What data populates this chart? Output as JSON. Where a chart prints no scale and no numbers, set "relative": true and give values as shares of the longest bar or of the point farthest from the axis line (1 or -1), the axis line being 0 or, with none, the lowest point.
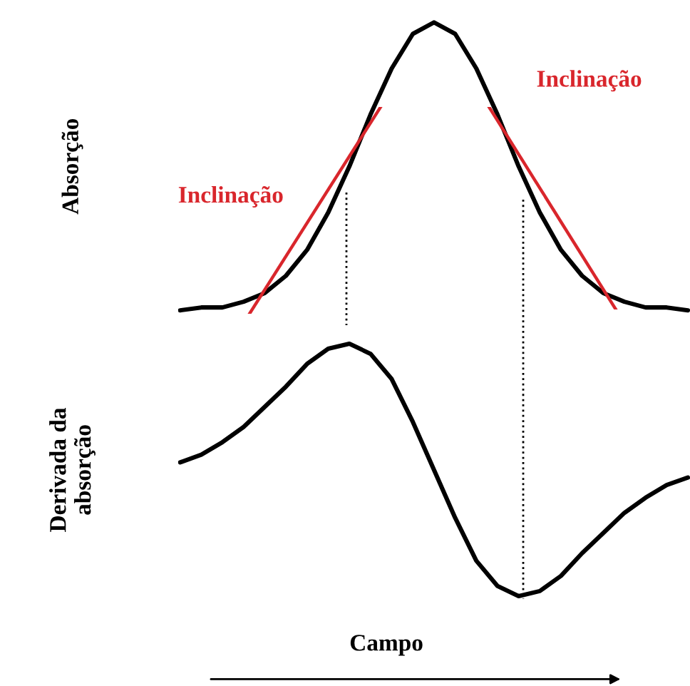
{
  "chart_data": [
    {
      "type": "line",
      "relative": true,
      "ylabel": "Absorção",
      "categories": [
        null,
        null,
        null,
        null,
        null,
        null,
        null,
        null,
        null,
        null,
        null,
        null,
        null,
        null,
        null,
        null,
        null,
        null,
        null,
        null,
        null,
        null,
        null,
        null,
        null
      ],
      "series": [
        {
          "color": "#000000",
          "values": [
            0.0,
            0.01,
            0.01,
            0.03,
            0.06,
            0.12,
            0.21,
            0.34,
            0.5,
            0.68,
            0.84,
            0.96,
            1.0,
            0.96,
            0.84,
            0.68,
            0.5,
            0.34,
            0.21,
            0.12,
            0.06,
            0.03,
            0.01,
            0.01,
            0.0
          ]
        }
      ],
      "annotations": [
        "Inclinação",
        "Inclinação"
      ]
    },
    {
      "type": "line",
      "relative": true,
      "ylabel": "Derivada da\nabsorção",
      "xlabel": "Campo",
      "categories": [
        null,
        null,
        null,
        null,
        null,
        null,
        null,
        null,
        null,
        null,
        null,
        null,
        null,
        null,
        null,
        null,
        null,
        null,
        null,
        null,
        null,
        null,
        null,
        null,
        null
      ],
      "series": [
        {
          "color": "#000000",
          "values": [
            0.53,
            0.56,
            0.61,
            0.67,
            0.75,
            0.83,
            0.92,
            0.98,
            1.0,
            0.96,
            0.86,
            0.69,
            0.5,
            0.31,
            0.14,
            0.04,
            0.0,
            0.02,
            0.08,
            0.17,
            0.25,
            0.33,
            0.39,
            0.44,
            0.47
          ]
        }
      ]
    }
  ]
}
